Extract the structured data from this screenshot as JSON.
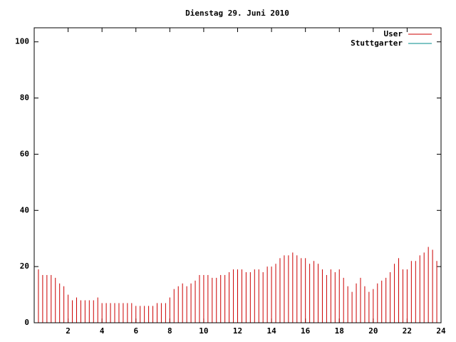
{
  "chart_data": {
    "type": "impulses",
    "title": "Dienstag 29. Juni 2010",
    "xlim": [
      0,
      24
    ],
    "xticks": [
      2,
      4,
      6,
      8,
      10,
      12,
      14,
      16,
      18,
      20,
      22,
      24
    ],
    "ylim": [
      0,
      105
    ],
    "yticks": [
      0,
      20,
      40,
      60,
      80,
      100
    ],
    "legend": "top-right",
    "series": [
      {
        "name": "User",
        "color": "#cc0000",
        "x": [
          0,
          0.25,
          0.5,
          0.75,
          1,
          1.25,
          1.5,
          1.75,
          2,
          2.25,
          2.5,
          2.75,
          3,
          3.25,
          3.5,
          3.75,
          4,
          4.25,
          4.5,
          4.75,
          5,
          5.25,
          5.5,
          5.75,
          6,
          6.25,
          6.5,
          6.75,
          7,
          7.25,
          7.5,
          7.75,
          8,
          8.25,
          8.5,
          8.75,
          9,
          9.25,
          9.5,
          9.75,
          10,
          10.25,
          10.5,
          10.75,
          11,
          11.25,
          11.5,
          11.75,
          12,
          12.25,
          12.5,
          12.75,
          13,
          13.25,
          13.5,
          13.75,
          14,
          14.25,
          14.5,
          14.75,
          15,
          15.25,
          15.5,
          15.75,
          16,
          16.25,
          16.5,
          16.75,
          17,
          17.25,
          17.5,
          17.75,
          18,
          18.25,
          18.5,
          18.75,
          19,
          19.25,
          19.5,
          19.75,
          20,
          20.25,
          20.5,
          20.75,
          21,
          21.25,
          21.5,
          21.75,
          22,
          22.25,
          22.5,
          22.75,
          23,
          23.25,
          23.5,
          23.75
        ],
        "values": [
          20,
          19,
          17,
          17,
          17,
          16,
          14,
          13,
          10,
          8,
          9,
          8,
          8,
          8,
          8,
          9,
          7,
          7,
          7,
          7,
          7,
          7,
          7,
          7,
          6,
          6,
          6,
          6,
          6,
          7,
          7,
          7,
          9,
          12,
          13,
          14,
          13,
          14,
          15,
          17,
          17,
          17,
          16,
          16,
          17,
          17,
          18,
          19,
          19,
          19,
          18,
          18,
          19,
          19,
          18,
          20,
          20,
          21,
          23,
          24,
          24,
          25,
          24,
          23,
          23,
          21,
          22,
          21,
          19,
          17,
          19,
          18,
          19,
          16,
          13,
          11,
          14,
          16,
          13,
          11,
          12,
          14,
          15,
          16,
          18,
          21,
          23,
          19,
          19,
          22,
          22,
          24,
          25,
          27,
          26,
          22
        ]
      },
      {
        "name": "Stuttgarter",
        "color": "#008b8b",
        "x": [],
        "values": []
      }
    ]
  }
}
